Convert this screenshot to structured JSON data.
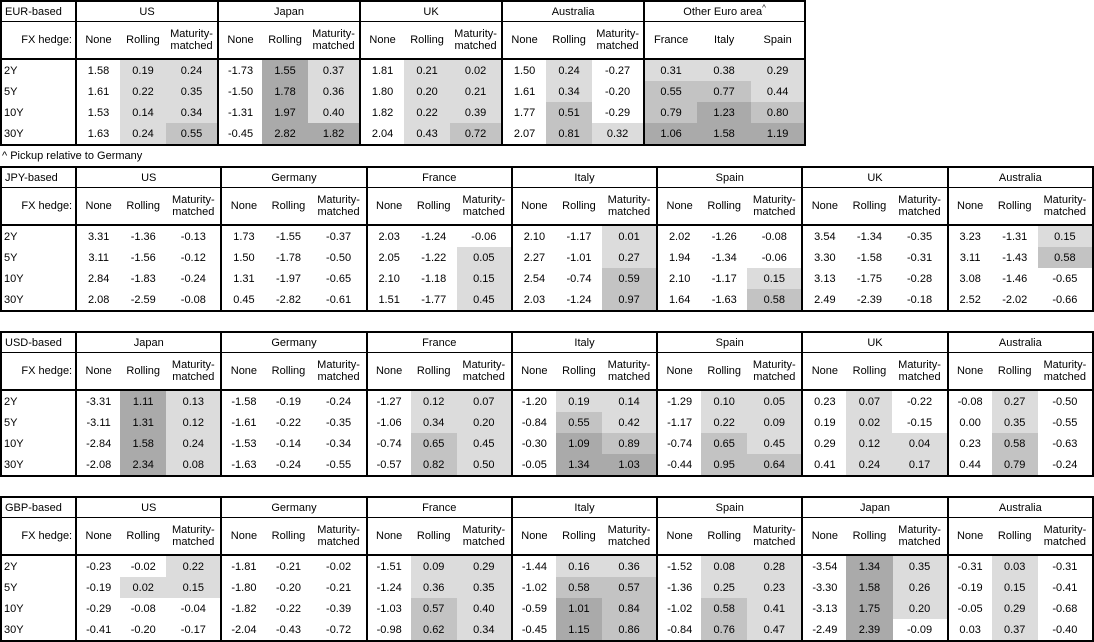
{
  "hedge_row_label": "FX hedge:",
  "tenors": [
    "2Y",
    "5Y",
    "10Y",
    "30Y"
  ],
  "footnote": "^ Pickup relative to Germany",
  "shading": {
    "unshaded": "#ffffff",
    "light": "#dcdcdc",
    "medium": "#c3c3c3",
    "dark": "#aaaaaa"
  },
  "tables": [
    {
      "base": "EUR-based",
      "groups": [
        {
          "country": "US",
          "columns": [
            "None",
            "Rolling",
            "Maturity-matched"
          ],
          "rows": [
            [
              "1.58",
              "0.19",
              "0.24"
            ],
            [
              "1.61",
              "0.22",
              "0.35"
            ],
            [
              "1.53",
              "0.14",
              "0.34"
            ],
            [
              "1.63",
              "0.24",
              "0.55"
            ]
          ]
        },
        {
          "country": "Japan",
          "columns": [
            "None",
            "Rolling",
            "Maturity-matched"
          ],
          "rows": [
            [
              "-1.73",
              "1.55",
              "0.37"
            ],
            [
              "-1.50",
              "1.78",
              "0.36"
            ],
            [
              "-1.31",
              "1.97",
              "0.40"
            ],
            [
              "-0.45",
              "2.82",
              "1.82"
            ]
          ]
        },
        {
          "country": "UK",
          "columns": [
            "None",
            "Rolling",
            "Maturity-matched"
          ],
          "rows": [
            [
              "1.81",
              "0.21",
              "0.02"
            ],
            [
              "1.80",
              "0.20",
              "0.21"
            ],
            [
              "1.82",
              "0.22",
              "0.39"
            ],
            [
              "2.04",
              "0.43",
              "0.72"
            ]
          ]
        },
        {
          "country": "Australia",
          "columns": [
            "None",
            "Rolling",
            "Maturity-matched"
          ],
          "rows": [
            [
              "1.50",
              "0.24",
              "-0.27"
            ],
            [
              "1.61",
              "0.34",
              "-0.20"
            ],
            [
              "1.77",
              "0.51",
              "-0.29"
            ],
            [
              "2.07",
              "0.81",
              "0.32"
            ]
          ]
        },
        {
          "country": "Other Euro area",
          "marker": "^",
          "shade_all": true,
          "columns": [
            "France",
            "Italy",
            "Spain"
          ],
          "rows": [
            [
              "0.31",
              "0.38",
              "0.29"
            ],
            [
              "0.55",
              "0.77",
              "0.44"
            ],
            [
              "0.79",
              "1.23",
              "0.80"
            ],
            [
              "1.06",
              "1.58",
              "1.19"
            ]
          ]
        }
      ]
    },
    {
      "base": "JPY-based",
      "groups": [
        {
          "country": "US",
          "columns": [
            "None",
            "Rolling",
            "Maturity-matched"
          ],
          "rows": [
            [
              "3.31",
              "-1.36",
              "-0.13"
            ],
            [
              "3.11",
              "-1.56",
              "-0.12"
            ],
            [
              "2.84",
              "-1.83",
              "-0.24"
            ],
            [
              "2.08",
              "-2.59",
              "-0.08"
            ]
          ]
        },
        {
          "country": "Germany",
          "columns": [
            "None",
            "Rolling",
            "Maturity-matched"
          ],
          "rows": [
            [
              "1.73",
              "-1.55",
              "-0.37"
            ],
            [
              "1.50",
              "-1.78",
              "-0.50"
            ],
            [
              "1.31",
              "-1.97",
              "-0.65"
            ],
            [
              "0.45",
              "-2.82",
              "-0.61"
            ]
          ]
        },
        {
          "country": "France",
          "columns": [
            "None",
            "Rolling",
            "Maturity-matched"
          ],
          "rows": [
            [
              "2.03",
              "-1.24",
              "-0.06"
            ],
            [
              "2.05",
              "-1.22",
              "0.05"
            ],
            [
              "2.10",
              "-1.18",
              "0.15"
            ],
            [
              "1.51",
              "-1.77",
              "0.45"
            ]
          ]
        },
        {
          "country": "Italy",
          "columns": [
            "None",
            "Rolling",
            "Maturity-matched"
          ],
          "rows": [
            [
              "2.10",
              "-1.17",
              "0.01"
            ],
            [
              "2.27",
              "-1.01",
              "0.27"
            ],
            [
              "2.54",
              "-0.74",
              "0.59"
            ],
            [
              "2.03",
              "-1.24",
              "0.97"
            ]
          ]
        },
        {
          "country": "Spain",
          "columns": [
            "None",
            "Rolling",
            "Maturity-matched"
          ],
          "rows": [
            [
              "2.02",
              "-1.26",
              "-0.08"
            ],
            [
              "1.94",
              "-1.34",
              "-0.06"
            ],
            [
              "2.10",
              "-1.17",
              "0.15"
            ],
            [
              "1.64",
              "-1.63",
              "0.58"
            ]
          ]
        },
        {
          "country": "UK",
          "columns": [
            "None",
            "Rolling",
            "Maturity-matched"
          ],
          "rows": [
            [
              "3.54",
              "-1.34",
              "-0.35"
            ],
            [
              "3.30",
              "-1.58",
              "-0.31"
            ],
            [
              "3.13",
              "-1.75",
              "-0.28"
            ],
            [
              "2.49",
              "-2.39",
              "-0.18"
            ]
          ]
        },
        {
          "country": "Australia",
          "columns": [
            "None",
            "Rolling",
            "Maturity-matched"
          ],
          "rows": [
            [
              "3.23",
              "-1.31",
              "0.15"
            ],
            [
              "3.11",
              "-1.43",
              "0.58"
            ],
            [
              "3.08",
              "-1.46",
              "-0.65"
            ],
            [
              "2.52",
              "-2.02",
              "-0.66"
            ]
          ]
        }
      ]
    },
    {
      "base": "USD-based",
      "groups": [
        {
          "country": "Japan",
          "columns": [
            "None",
            "Rolling",
            "Maturity-matched"
          ],
          "rows": [
            [
              "-3.31",
              "1.11",
              "0.13"
            ],
            [
              "-3.11",
              "1.31",
              "0.12"
            ],
            [
              "-2.84",
              "1.58",
              "0.24"
            ],
            [
              "-2.08",
              "2.34",
              "0.08"
            ]
          ]
        },
        {
          "country": "Germany",
          "columns": [
            "None",
            "Rolling",
            "Maturity-matched"
          ],
          "rows": [
            [
              "-1.58",
              "-0.19",
              "-0.24"
            ],
            [
              "-1.61",
              "-0.22",
              "-0.35"
            ],
            [
              "-1.53",
              "-0.14",
              "-0.34"
            ],
            [
              "-1.63",
              "-0.24",
              "-0.55"
            ]
          ]
        },
        {
          "country": "France",
          "columns": [
            "None",
            "Rolling",
            "Maturity-matched"
          ],
          "rows": [
            [
              "-1.27",
              "0.12",
              "0.07"
            ],
            [
              "-1.06",
              "0.34",
              "0.20"
            ],
            [
              "-0.74",
              "0.65",
              "0.45"
            ],
            [
              "-0.57",
              "0.82",
              "0.50"
            ]
          ]
        },
        {
          "country": "Italy",
          "columns": [
            "None",
            "Rolling",
            "Maturity-matched"
          ],
          "rows": [
            [
              "-1.20",
              "0.19",
              "0.14"
            ],
            [
              "-0.84",
              "0.55",
              "0.42"
            ],
            [
              "-0.30",
              "1.09",
              "0.89"
            ],
            [
              "-0.05",
              "1.34",
              "1.03"
            ]
          ]
        },
        {
          "country": "Spain",
          "columns": [
            "None",
            "Rolling",
            "Maturity-matched"
          ],
          "rows": [
            [
              "-1.29",
              "0.10",
              "0.05"
            ],
            [
              "-1.17",
              "0.22",
              "0.09"
            ],
            [
              "-0.74",
              "0.65",
              "0.45"
            ],
            [
              "-0.44",
              "0.95",
              "0.64"
            ]
          ]
        },
        {
          "country": "UK",
          "columns": [
            "None",
            "Rolling",
            "Maturity-matched"
          ],
          "rows": [
            [
              "0.23",
              "0.07",
              "-0.22"
            ],
            [
              "0.19",
              "0.02",
              "-0.15"
            ],
            [
              "0.29",
              "0.12",
              "0.04"
            ],
            [
              "0.41",
              "0.24",
              "0.17"
            ]
          ]
        },
        {
          "country": "Australia",
          "columns": [
            "None",
            "Rolling",
            "Maturity-matched"
          ],
          "rows": [
            [
              "-0.08",
              "0.27",
              "-0.50"
            ],
            [
              "0.00",
              "0.35",
              "-0.55"
            ],
            [
              "0.23",
              "0.58",
              "-0.63"
            ],
            [
              "0.44",
              "0.79",
              "-0.24"
            ]
          ]
        }
      ]
    },
    {
      "base": "GBP-based",
      "groups": [
        {
          "country": "US",
          "columns": [
            "None",
            "Rolling",
            "Maturity-matched"
          ],
          "rows": [
            [
              "-0.23",
              "-0.02",
              "0.22"
            ],
            [
              "-0.19",
              "0.02",
              "0.15"
            ],
            [
              "-0.29",
              "-0.08",
              "-0.04"
            ],
            [
              "-0.41",
              "-0.20",
              "-0.17"
            ]
          ]
        },
        {
          "country": "Germany",
          "columns": [
            "None",
            "Rolling",
            "Maturity-matched"
          ],
          "rows": [
            [
              "-1.81",
              "-0.21",
              "-0.02"
            ],
            [
              "-1.80",
              "-0.20",
              "-0.21"
            ],
            [
              "-1.82",
              "-0.22",
              "-0.39"
            ],
            [
              "-2.04",
              "-0.43",
              "-0.72"
            ]
          ]
        },
        {
          "country": "France",
          "columns": [
            "None",
            "Rolling",
            "Maturity-matched"
          ],
          "rows": [
            [
              "-1.51",
              "0.09",
              "0.29"
            ],
            [
              "-1.24",
              "0.36",
              "0.35"
            ],
            [
              "-1.03",
              "0.57",
              "0.40"
            ],
            [
              "-0.98",
              "0.62",
              "0.34"
            ]
          ]
        },
        {
          "country": "Italy",
          "columns": [
            "None",
            "Rolling",
            "Maturity-matched"
          ],
          "rows": [
            [
              "-1.44",
              "0.16",
              "0.36"
            ],
            [
              "-1.02",
              "0.58",
              "0.57"
            ],
            [
              "-0.59",
              "1.01",
              "0.84"
            ],
            [
              "-0.45",
              "1.15",
              "0.86"
            ]
          ]
        },
        {
          "country": "Spain",
          "columns": [
            "None",
            "Rolling",
            "Maturity-matched"
          ],
          "rows": [
            [
              "-1.52",
              "0.08",
              "0.28"
            ],
            [
              "-1.36",
              "0.25",
              "0.23"
            ],
            [
              "-1.02",
              "0.58",
              "0.41"
            ],
            [
              "-0.84",
              "0.76",
              "0.47"
            ]
          ]
        },
        {
          "country": "Japan",
          "columns": [
            "None",
            "Rolling",
            "Maturity-matched"
          ],
          "rows": [
            [
              "-3.54",
              "1.34",
              "0.35"
            ],
            [
              "-3.30",
              "1.58",
              "0.26"
            ],
            [
              "-3.13",
              "1.75",
              "0.20"
            ],
            [
              "-2.49",
              "2.39",
              "-0.09"
            ]
          ]
        },
        {
          "country": "Australia",
          "columns": [
            "None",
            "Rolling",
            "Maturity-matched"
          ],
          "rows": [
            [
              "-0.31",
              "0.03",
              "-0.31"
            ],
            [
              "-0.19",
              "0.15",
              "-0.41"
            ],
            [
              "-0.05",
              "0.29",
              "-0.68"
            ],
            [
              "0.03",
              "0.37",
              "-0.40"
            ]
          ]
        }
      ]
    }
  ]
}
